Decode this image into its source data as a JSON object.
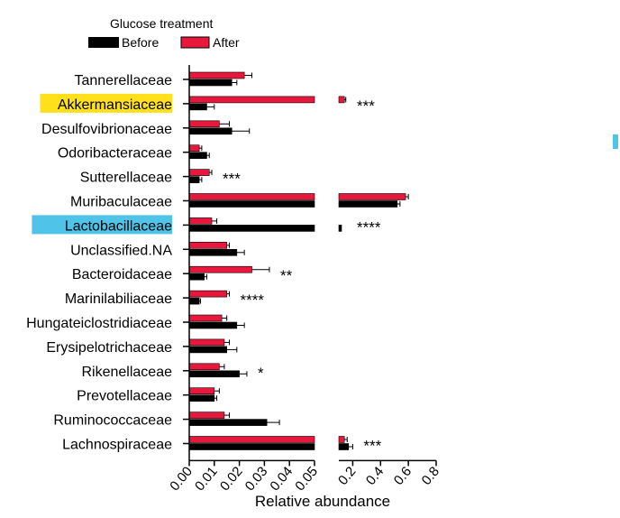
{
  "chart_data": {
    "type": "bar",
    "orientation": "horizontal",
    "legend": {
      "title": "Glucose treatment",
      "placement": "top-left",
      "entries": [
        {
          "name": "Before",
          "color": "#000000"
        },
        {
          "name": "After",
          "color": "#e8173c"
        }
      ]
    },
    "xlabel": "Relative abundance",
    "x_axis_segments": [
      {
        "range": [
          0,
          0.05
        ],
        "ticks": [
          "0.00",
          "0.01",
          "0.02",
          "0.03",
          "0.04",
          "0.05"
        ]
      },
      {
        "range": [
          0.1,
          0.8
        ],
        "ticks": [
          "0.2",
          "0.4",
          "0.6",
          "0.8"
        ]
      }
    ],
    "categories": [
      "Tannerellaceae",
      "Akkermansiaceae",
      "Desulfovibrionaceae",
      "Odoribacteraceae",
      "Sutterellaceae",
      "Muribaculaceae",
      "Lactobacillaceae",
      "Unclassified.NA",
      "Bacteroidaceae",
      "Marinilabiliaceae",
      "Hungateiclostridiaceae",
      "Erysipelotrichaceae",
      "Rikenellaceae",
      "Prevotellaceae",
      "Ruminococcaceae",
      "Lachnospiraceae"
    ],
    "highlighted_categories": [
      {
        "name": "Akkermansiaceae",
        "color": "#ffe01a"
      },
      {
        "name": "Lactobacillaceae",
        "color": "#4fc3e8"
      }
    ],
    "series": [
      {
        "name": "After",
        "color": "#e8173c",
        "values": [
          0.022,
          0.14,
          0.012,
          0.004,
          0.008,
          0.58,
          0.009,
          0.015,
          0.025,
          0.015,
          0.013,
          0.014,
          0.012,
          0.01,
          0.014,
          0.14
        ],
        "errors": [
          0.003,
          0.01,
          0.004,
          0.001,
          0.001,
          0.02,
          0.002,
          0.001,
          0.007,
          0.001,
          0.002,
          0.002,
          0.002,
          0.002,
          0.002,
          0.02
        ]
      },
      {
        "name": "Before",
        "color": "#000000",
        "values": [
          0.017,
          0.007,
          0.017,
          0.007,
          0.004,
          0.52,
          0.11,
          0.019,
          0.006,
          0.004,
          0.019,
          0.015,
          0.02,
          0.01,
          0.031,
          0.17
        ],
        "errors": [
          0.002,
          0.003,
          0.007,
          0.001,
          0.001,
          0.02,
          0.005,
          0.003,
          0.001,
          0.0005,
          0.003,
          0.004,
          0.003,
          0.001,
          0.005,
          0.03
        ]
      }
    ],
    "significance": [
      "",
      "***",
      "",
      "",
      "***",
      "",
      "****",
      "",
      "**",
      "****",
      "",
      "",
      "*",
      "",
      "",
      "***"
    ],
    "grid": false
  }
}
